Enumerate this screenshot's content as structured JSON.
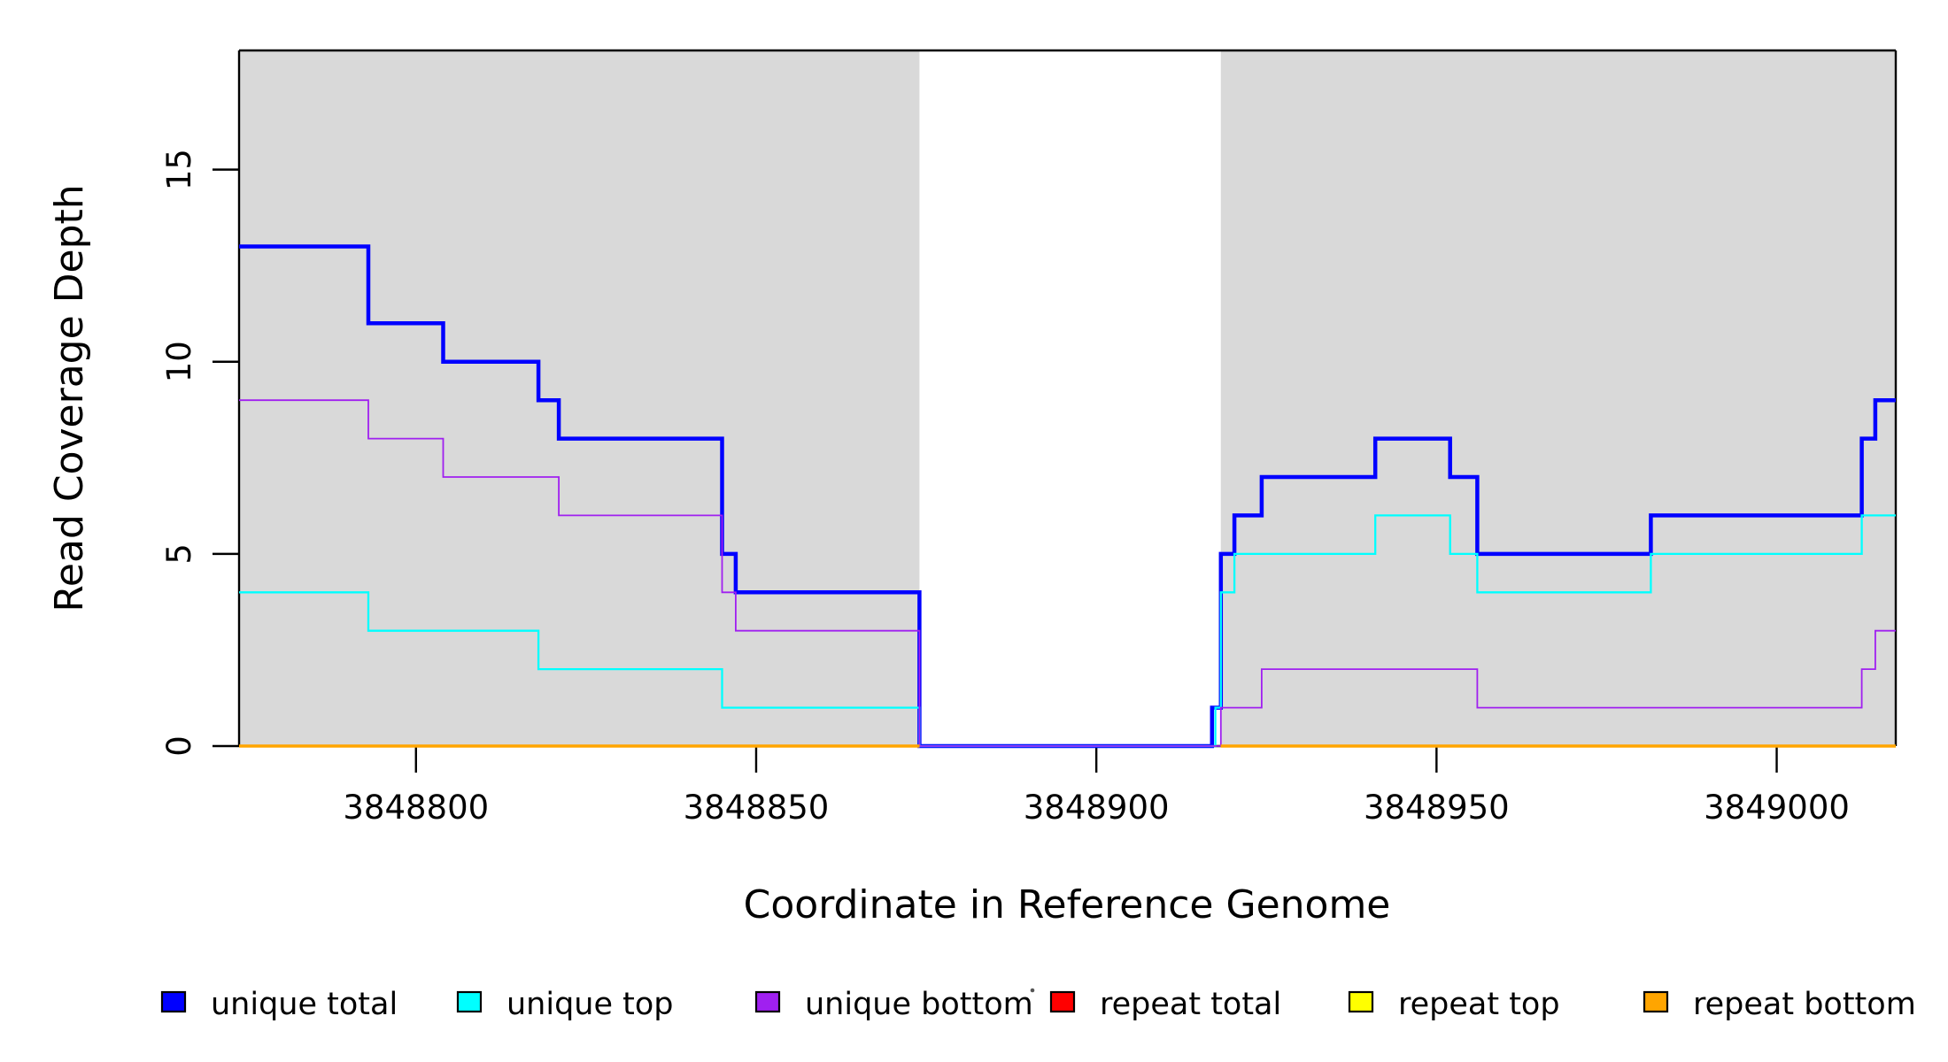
{
  "chart_data": {
    "type": "step",
    "title": "",
    "xlabel": "Coordinate in Reference Genome",
    "ylabel": "Read Coverage Depth",
    "xlim": [
      3848774,
      3849017.5
    ],
    "ylim": [
      0,
      18.1
    ],
    "xticks": [
      3848800,
      3848850,
      3848900,
      3848950,
      3849000
    ],
    "yticks": [
      0,
      5,
      10,
      15
    ],
    "grid": false,
    "background_color": "#ffffff",
    "shaded_region_color": "#d9d9d9",
    "shaded_regions": [
      [
        3848774,
        3848874
      ],
      [
        3848918.3,
        3849017.5
      ]
    ],
    "series": [
      {
        "name": "unique total",
        "color": "#0000ff",
        "width": 4.5,
        "segments": [
          [
            [
              3848774,
              13
            ],
            [
              3848793,
              11
            ],
            [
              3848804,
              10
            ],
            [
              3848818,
              9
            ],
            [
              3848821,
              8
            ],
            [
              3848845,
              5
            ],
            [
              3848847,
              4
            ],
            [
              3848874,
              0
            ],
            [
              3848917,
              1
            ],
            [
              3848918.3,
              5
            ],
            [
              3848920.3,
              6
            ],
            [
              3848924.3,
              7
            ],
            [
              3848941,
              8
            ],
            [
              3848952,
              7
            ],
            [
              3848956,
              5
            ],
            [
              3848981.5,
              6
            ],
            [
              3849012.5,
              8
            ],
            [
              3849014.5,
              9
            ],
            [
              3849017.5,
              9
            ]
          ]
        ]
      },
      {
        "name": "unique top",
        "color": "#00ffff",
        "width": 2.3,
        "segments": [
          [
            [
              3848774,
              4
            ],
            [
              3848793,
              3
            ],
            [
              3848818,
              2
            ],
            [
              3848845,
              1
            ],
            [
              3848874,
              0
            ],
            [
              3848917.5,
              1
            ],
            [
              3848918.3,
              4
            ],
            [
              3848920.3,
              5
            ],
            [
              3848941,
              6
            ],
            [
              3848952,
              5
            ],
            [
              3848956,
              4
            ],
            [
              3848981.5,
              5
            ],
            [
              3849012.5,
              6
            ],
            [
              3849017.5,
              6
            ]
          ]
        ]
      },
      {
        "name": "unique bottom",
        "color": "#a020f0",
        "width": 1.8,
        "segments": [
          [
            [
              3848774,
              9
            ],
            [
              3848793,
              8
            ],
            [
              3848804,
              7
            ],
            [
              3848821,
              6
            ],
            [
              3848845,
              4
            ],
            [
              3848847,
              3
            ],
            [
              3848874,
              0
            ],
            [
              3848918.3,
              1
            ],
            [
              3848924.3,
              2
            ],
            [
              3848956,
              1
            ],
            [
              3849012.5,
              2
            ],
            [
              3849014.5,
              3
            ],
            [
              3849017.5,
              3
            ]
          ]
        ]
      },
      {
        "name": "repeat total",
        "color": "#ff0000",
        "width": 3,
        "segments": [
          [
            [
              3848774,
              0
            ],
            [
              3848874,
              0
            ]
          ],
          [
            [
              3848918.3,
              0
            ],
            [
              3849017.5,
              0
            ]
          ]
        ]
      },
      {
        "name": "repeat top",
        "color": "#ffff00",
        "width": 3,
        "segments": [
          [
            [
              3848774,
              0
            ],
            [
              3848874,
              0
            ]
          ],
          [
            [
              3848918.3,
              0
            ],
            [
              3849017.5,
              0
            ]
          ]
        ]
      },
      {
        "name": "repeat bottom",
        "color": "#ffa500",
        "width": 3.5,
        "segments": [
          [
            [
              3848774,
              0
            ],
            [
              3848874,
              0
            ]
          ],
          [
            [
              3848918.3,
              0
            ],
            [
              3849017.5,
              0
            ]
          ]
        ]
      }
    ],
    "legend": {
      "position": "bottom",
      "entries": [
        {
          "label": "unique total",
          "color": "#0000ff"
        },
        {
          "label": "unique top",
          "color": "#00ffff"
        },
        {
          "label": "unique bottom",
          "color": "#a020f0"
        },
        {
          "label": "repeat total",
          "color": "#ff0000"
        },
        {
          "label": "repeat top",
          "color": "#ffff00"
        },
        {
          "label": "repeat bottom",
          "color": "#ffa500"
        }
      ]
    }
  }
}
